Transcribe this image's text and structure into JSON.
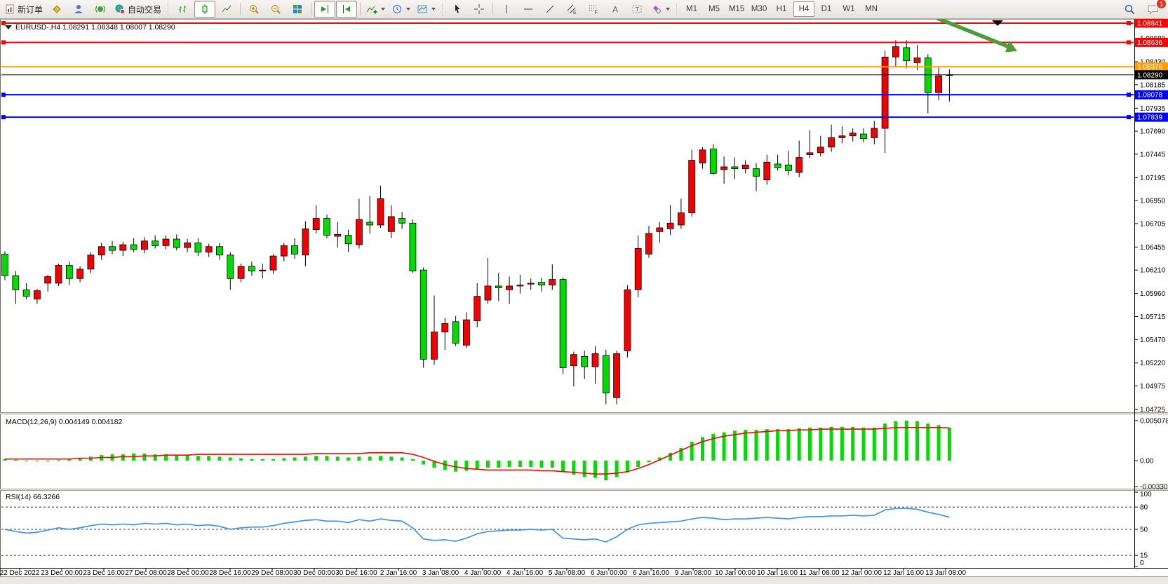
{
  "toolbar": {
    "new_order_label": "新订单",
    "autotrading_label": "自动交易",
    "chat_badge": "1",
    "timeframes": [
      {
        "label": "M1",
        "active": false
      },
      {
        "label": "M5",
        "active": false
      },
      {
        "label": "M15",
        "active": false
      },
      {
        "label": "M30",
        "active": false
      },
      {
        "label": "H1",
        "active": false
      },
      {
        "label": "H4",
        "active": true
      },
      {
        "label": "D1",
        "active": false
      },
      {
        "label": "W1",
        "active": false
      },
      {
        "label": "MN",
        "active": false
      }
    ],
    "tool_icons": [
      "new-order",
      "mql-wizard",
      "profile",
      "broadcast",
      "autotrading",
      "bar-chart",
      "candlestick",
      "line-chart",
      "zoom-in",
      "zoom-out",
      "tile-windows",
      "auto-scroll",
      "chart-shift",
      "indicators",
      "periods",
      "templates",
      "cursor",
      "crosshair",
      "vertical-line",
      "horizontal-line",
      "trendline",
      "channel",
      "fibonacci",
      "text",
      "label",
      "shapes",
      "search",
      "chat"
    ]
  },
  "chart": {
    "symbol_title": "EURUSD-,H4  1.08291 1.08348 1.08007 1.08290",
    "macd_label": "MACD(12,26,9) 0.004149 0.004182",
    "rsi_label": "RSI(14) 66.3266",
    "current_price": "1.08290",
    "price_axis_ticks": [
      "1.08680",
      "1.08430",
      "1.08185",
      "1.07935",
      "1.07690",
      "1.07445",
      "1.07195",
      "1.06950",
      "1.06705",
      "1.06455",
      "1.06210",
      "1.05960",
      "1.05715",
      "1.05470",
      "1.05220",
      "1.04975",
      "1.04725"
    ],
    "macd_axis_ticks": [
      {
        "value": 0.005078,
        "label": "0.005078"
      },
      {
        "value": 0.0,
        "label": "0.00"
      },
      {
        "value": -0.003301,
        "label": "-0.003301"
      }
    ],
    "rsi_axis_ticks": [
      {
        "value": 100,
        "label": "100",
        "dashed": false
      },
      {
        "value": 80,
        "label": "80",
        "dashed": true
      },
      {
        "value": 50,
        "label": "50",
        "dashed": true
      },
      {
        "value": 15,
        "label": "15",
        "dashed": true
      },
      {
        "value": 0,
        "label": "0",
        "dashed": false
      }
    ],
    "hlines": [
      {
        "price": "1.08841",
        "value": 1.08841,
        "color": "#ff0000",
        "width": 2,
        "handles": true
      },
      {
        "price": "1.08636",
        "value": 1.08636,
        "color": "#ff0000",
        "width": 2,
        "handles": true
      },
      {
        "price": "1.08376",
        "value": 1.08376,
        "color": "#ffa000",
        "width": 2,
        "handles": false
      },
      {
        "price": "1.08290",
        "value": 1.0829,
        "color": "#000000",
        "width": 1,
        "handles": false
      },
      {
        "price": "1.08078",
        "value": 1.08078,
        "color": "#0000ff",
        "width": 2,
        "handles": true
      },
      {
        "price": "1.07839",
        "value": 1.07839,
        "color": "#0000ff",
        "width": 2,
        "handles": true
      }
    ]
  },
  "colors": {
    "bull": "#f50000",
    "bear": "#00dc00",
    "wick": "#000000",
    "macd_hist": "#00dc00",
    "macd_signal": "#ff0000",
    "rsi_line": "#3f95ea",
    "arrow_green": "#4e9a3c"
  },
  "chart_data": [
    {
      "type": "candlestick",
      "title": "EURUSD-,H4",
      "timeframe": "H4",
      "ohlc_last_bar": {
        "open": 1.08291,
        "high": 1.08348,
        "low": 1.08007,
        "close": 1.0829
      },
      "ylim": [
        1.04725,
        1.08841
      ],
      "x_labels": [
        "22 Dec 2022",
        "23 Dec 00:00",
        "23 Dec 16:00",
        "27 Dec 08:00",
        "28 Dec 00:00",
        "28 Dec 16:00",
        "29 Dec 08:00",
        "30 Dec 00:00",
        "30 Dec 16:00",
        "2 Jan 16:00",
        "3 Jan 08:00",
        "4 Jan 00:00",
        "4 Jan 16:00",
        "5 Jan 08:00",
        "6 Jan 00:00",
        "6 Jan 16:00",
        "9 Jan 08:00",
        "10 Jan 00:00",
        "10 Jan 16:00",
        "11 Jan 08:00",
        "12 Jan 00:00",
        "12 Jan 16:00",
        "13 Jan 08:00"
      ],
      "ohlc": [
        [
          1.0638,
          1.0641,
          1.061,
          1.0615
        ],
        [
          1.0615,
          1.062,
          1.0585,
          1.06
        ],
        [
          1.06,
          1.0607,
          1.059,
          1.0593
        ],
        [
          1.059,
          1.0601,
          1.0585,
          1.0599
        ],
        [
          1.0607,
          1.0616,
          1.0598,
          1.0614
        ],
        [
          1.0607,
          1.0628,
          1.0604,
          1.0626
        ],
        [
          1.0626,
          1.063,
          1.0605,
          1.0612
        ],
        [
          1.0612,
          1.0625,
          1.0608,
          1.0622
        ],
        [
          1.0622,
          1.064,
          1.0618,
          1.0637
        ],
        [
          1.0637,
          1.065,
          1.0632,
          1.0646
        ],
        [
          1.0646,
          1.0652,
          1.0638,
          1.0642
        ],
        [
          1.0642,
          1.0651,
          1.0636,
          1.0648
        ],
        [
          1.0648,
          1.0655,
          1.064,
          1.0643
        ],
        [
          1.0643,
          1.0656,
          1.0639,
          1.0652
        ],
        [
          1.0652,
          1.0658,
          1.0644,
          1.0647
        ],
        [
          1.0647,
          1.0658,
          1.0643,
          1.0654
        ],
        [
          1.0654,
          1.0659,
          1.0642,
          1.0645
        ],
        [
          1.0645,
          1.0654,
          1.064,
          1.065
        ],
        [
          1.065,
          1.0655,
          1.0636,
          1.064
        ],
        [
          1.064,
          1.0649,
          1.0635,
          1.0646
        ],
        [
          1.0646,
          1.065,
          1.0632,
          1.0637
        ],
        [
          1.0637,
          1.064,
          1.06,
          1.0612
        ],
        [
          1.0612,
          1.0628,
          1.0608,
          1.0625
        ],
        [
          1.0625,
          1.063,
          1.0615,
          1.062
        ],
        [
          1.062,
          1.0628,
          1.0612,
          1.0621
        ],
        [
          1.0621,
          1.0638,
          1.0617,
          1.0636
        ],
        [
          1.0636,
          1.065,
          1.063,
          1.0647
        ],
        [
          1.0647,
          1.0655,
          1.0633,
          1.0638
        ],
        [
          1.0637,
          1.0673,
          1.0625,
          1.0665
        ],
        [
          1.0664,
          1.069,
          1.066,
          1.0676
        ],
        [
          1.0676,
          1.068,
          1.0655,
          1.0658
        ],
        [
          1.0657,
          1.0672,
          1.0645,
          1.0659
        ],
        [
          1.0658,
          1.0664,
          1.064,
          1.0649
        ],
        [
          1.0648,
          1.0697,
          1.0644,
          1.0675
        ],
        [
          1.0672,
          1.07,
          1.066,
          1.0669
        ],
        [
          1.0669,
          1.0711,
          1.0666,
          1.0697
        ],
        [
          1.0662,
          1.069,
          1.0655,
          1.0678
        ],
        [
          1.0676,
          1.0683,
          1.0665,
          1.0671
        ],
        [
          1.0671,
          1.0675,
          1.0618,
          1.062
        ],
        [
          1.0621,
          1.0624,
          1.0517,
          1.0526
        ],
        [
          1.0526,
          1.0594,
          1.052,
          1.0555
        ],
        [
          1.0555,
          1.057,
          1.0536,
          1.0564
        ],
        [
          1.0566,
          1.0572,
          1.054,
          1.0543
        ],
        [
          1.0541,
          1.0576,
          1.0538,
          1.0568
        ],
        [
          1.0567,
          1.0607,
          1.056,
          1.0593
        ],
        [
          1.0589,
          1.0634,
          1.0585,
          1.0604
        ],
        [
          1.0604,
          1.0618,
          1.0588,
          1.0602
        ],
        [
          1.06,
          1.0614,
          1.0585,
          1.0604
        ],
        [
          1.0604,
          1.0616,
          1.0596,
          1.0605
        ],
        [
          1.0606,
          1.0612,
          1.06,
          1.0607
        ],
        [
          1.0608,
          1.0613,
          1.0598,
          1.0605
        ],
        [
          1.0605,
          1.0627,
          1.06,
          1.0611
        ],
        [
          1.0611,
          1.0613,
          1.051,
          1.0517
        ],
        [
          1.0519,
          1.0534,
          1.0497,
          1.0531
        ],
        [
          1.0529,
          1.0535,
          1.0505,
          1.0518
        ],
        [
          1.0518,
          1.054,
          1.05,
          1.0532
        ],
        [
          1.053,
          1.0536,
          1.0478,
          1.049
        ],
        [
          1.0485,
          1.0535,
          1.0478,
          1.0532
        ],
        [
          1.0535,
          1.0605,
          1.0528,
          1.06
        ],
        [
          1.06,
          1.0658,
          1.0592,
          1.0644
        ],
        [
          1.0638,
          1.0668,
          1.0634,
          1.066
        ],
        [
          1.0662,
          1.0672,
          1.065,
          1.0666
        ],
        [
          1.0665,
          1.069,
          1.0658,
          1.0671
        ],
        [
          1.0669,
          1.0697,
          1.0665,
          1.0682
        ],
        [
          1.0682,
          1.0749,
          1.0678,
          1.0738
        ],
        [
          1.0735,
          1.0752,
          1.0729,
          1.0749
        ],
        [
          1.075,
          1.0755,
          1.0722,
          1.0724
        ],
        [
          1.0728,
          1.0742,
          1.0713,
          1.0731
        ],
        [
          1.0731,
          1.0741,
          1.0718,
          1.0729
        ],
        [
          1.0729,
          1.0738,
          1.0724,
          1.0733
        ],
        [
          1.0729,
          1.0735,
          1.0705,
          1.0721
        ],
        [
          1.0717,
          1.0744,
          1.0712,
          1.0736
        ],
        [
          1.0734,
          1.0744,
          1.0727,
          1.073
        ],
        [
          1.0733,
          1.0748,
          1.0722,
          1.0727
        ],
        [
          1.0725,
          1.0759,
          1.072,
          1.0741
        ],
        [
          1.0744,
          1.077,
          1.074,
          1.0746
        ],
        [
          1.0746,
          1.0764,
          1.0742,
          1.0752
        ],
        [
          1.0752,
          1.0776,
          1.0747,
          1.0762
        ],
        [
          1.0762,
          1.0774,
          1.0756,
          1.0764
        ],
        [
          1.0764,
          1.0772,
          1.0758,
          1.0767
        ],
        [
          1.0766,
          1.0772,
          1.0757,
          1.0761
        ],
        [
          1.0762,
          1.078,
          1.0755,
          1.0772
        ],
        [
          1.0772,
          1.0855,
          1.0746,
          1.0848
        ],
        [
          1.0848,
          1.0866,
          1.0838,
          1.0859
        ],
        [
          1.0858,
          1.0866,
          1.0836,
          1.0844
        ],
        [
          1.0842,
          1.0861,
          1.0834,
          1.0847
        ],
        [
          1.0847,
          1.0851,
          1.0788,
          1.081
        ],
        [
          1.081,
          1.0838,
          1.0802,
          1.0828
        ],
        [
          1.08291,
          1.08348,
          1.08007,
          1.0829
        ]
      ]
    },
    {
      "type": "bar",
      "title": "MACD(12,26,9)",
      "current_values": "0.004149 0.004182",
      "ylim": [
        -0.003301,
        0.005078
      ],
      "histogram": [
        0.0002,
        0.0001,
        0.0,
        -0.0001,
        -0.0001,
        0.0001,
        0.0002,
        0.0003,
        0.0005,
        0.0007,
        0.0008,
        0.0008,
        0.0009,
        0.0009,
        0.0008,
        0.0008,
        0.0007,
        0.0007,
        0.0006,
        0.0006,
        0.0005,
        0.0004,
        0.0003,
        0.0002,
        0.0002,
        0.0002,
        0.0003,
        0.0004,
        0.0005,
        0.0006,
        0.0006,
        0.0005,
        0.0004,
        0.0005,
        0.0005,
        0.0006,
        0.0005,
        0.0004,
        0.0002,
        -0.0005,
        -0.0009,
        -0.0012,
        -0.0014,
        -0.0013,
        -0.0011,
        -0.0009,
        -0.0009,
        -0.0008,
        -0.0008,
        -0.0008,
        -0.0009,
        -0.0009,
        -0.0014,
        -0.0018,
        -0.0021,
        -0.0022,
        -0.0025,
        -0.0021,
        -0.0015,
        -0.0008,
        -0.0002,
        0.0004,
        0.001,
        0.0016,
        0.0024,
        0.003,
        0.0034,
        0.0036,
        0.0038,
        0.0039,
        0.0039,
        0.004,
        0.004,
        0.004,
        0.0041,
        0.0042,
        0.0042,
        0.0043,
        0.0043,
        0.0043,
        0.0042,
        0.0042,
        0.0047,
        0.005,
        0.00508,
        0.005,
        0.0047,
        0.0045,
        0.00418
      ],
      "signal": [
        0.0002,
        0.0002,
        0.0002,
        0.0002,
        0.0002,
        0.0002,
        0.0002,
        0.0003,
        0.0003,
        0.0004,
        0.0004,
        0.0005,
        0.0005,
        0.0006,
        0.0006,
        0.0007,
        0.0007,
        0.0007,
        0.0008,
        0.0008,
        0.0008,
        0.0008,
        0.0008,
        0.0008,
        0.0008,
        0.0008,
        0.0008,
        0.0008,
        0.0008,
        0.0009,
        0.0009,
        0.0009,
        0.0009,
        0.0009,
        0.001,
        0.001,
        0.001,
        0.001,
        0.0008,
        0.0004,
        -0.0001,
        -0.0005,
        -0.0008,
        -0.001,
        -0.0011,
        -0.0012,
        -0.0012,
        -0.0012,
        -0.0012,
        -0.0012,
        -0.0013,
        -0.0013,
        -0.0014,
        -0.0015,
        -0.0016,
        -0.0017,
        -0.0017,
        -0.0016,
        -0.0014,
        -0.001,
        -0.0005,
        0.0001,
        0.0007,
        0.0013,
        0.0019,
        0.0024,
        0.0028,
        0.0031,
        0.0033,
        0.0035,
        0.0036,
        0.0037,
        0.0038,
        0.0038,
        0.0039,
        0.0039,
        0.004,
        0.004,
        0.004,
        0.004,
        0.004,
        0.004,
        0.0041,
        0.0042,
        0.0042,
        0.0042,
        0.0042,
        0.0042,
        0.00415
      ]
    },
    {
      "type": "line",
      "title": "RSI(14)",
      "current_value": 66.3266,
      "ylim": [
        0,
        100
      ],
      "levels": [
        80,
        50,
        15
      ],
      "values": [
        50,
        47,
        45,
        46,
        49,
        52,
        50,
        52,
        55,
        57,
        56,
        57,
        56,
        58,
        57,
        58,
        56,
        57,
        55,
        56,
        54,
        50,
        52,
        53,
        53,
        55,
        58,
        60,
        62,
        63,
        61,
        61,
        59,
        63,
        61,
        64,
        62,
        61,
        52,
        37,
        35,
        36,
        34,
        38,
        44,
        47,
        48,
        49,
        49,
        50,
        49,
        50,
        38,
        37,
        36,
        37,
        33,
        40,
        50,
        56,
        58,
        59,
        60,
        61,
        64,
        66,
        65,
        63,
        64,
        64,
        65,
        66,
        65,
        64,
        66,
        67,
        67,
        68,
        68,
        69,
        68,
        69,
        76,
        78,
        78,
        77,
        73,
        70,
        66.33
      ]
    }
  ]
}
